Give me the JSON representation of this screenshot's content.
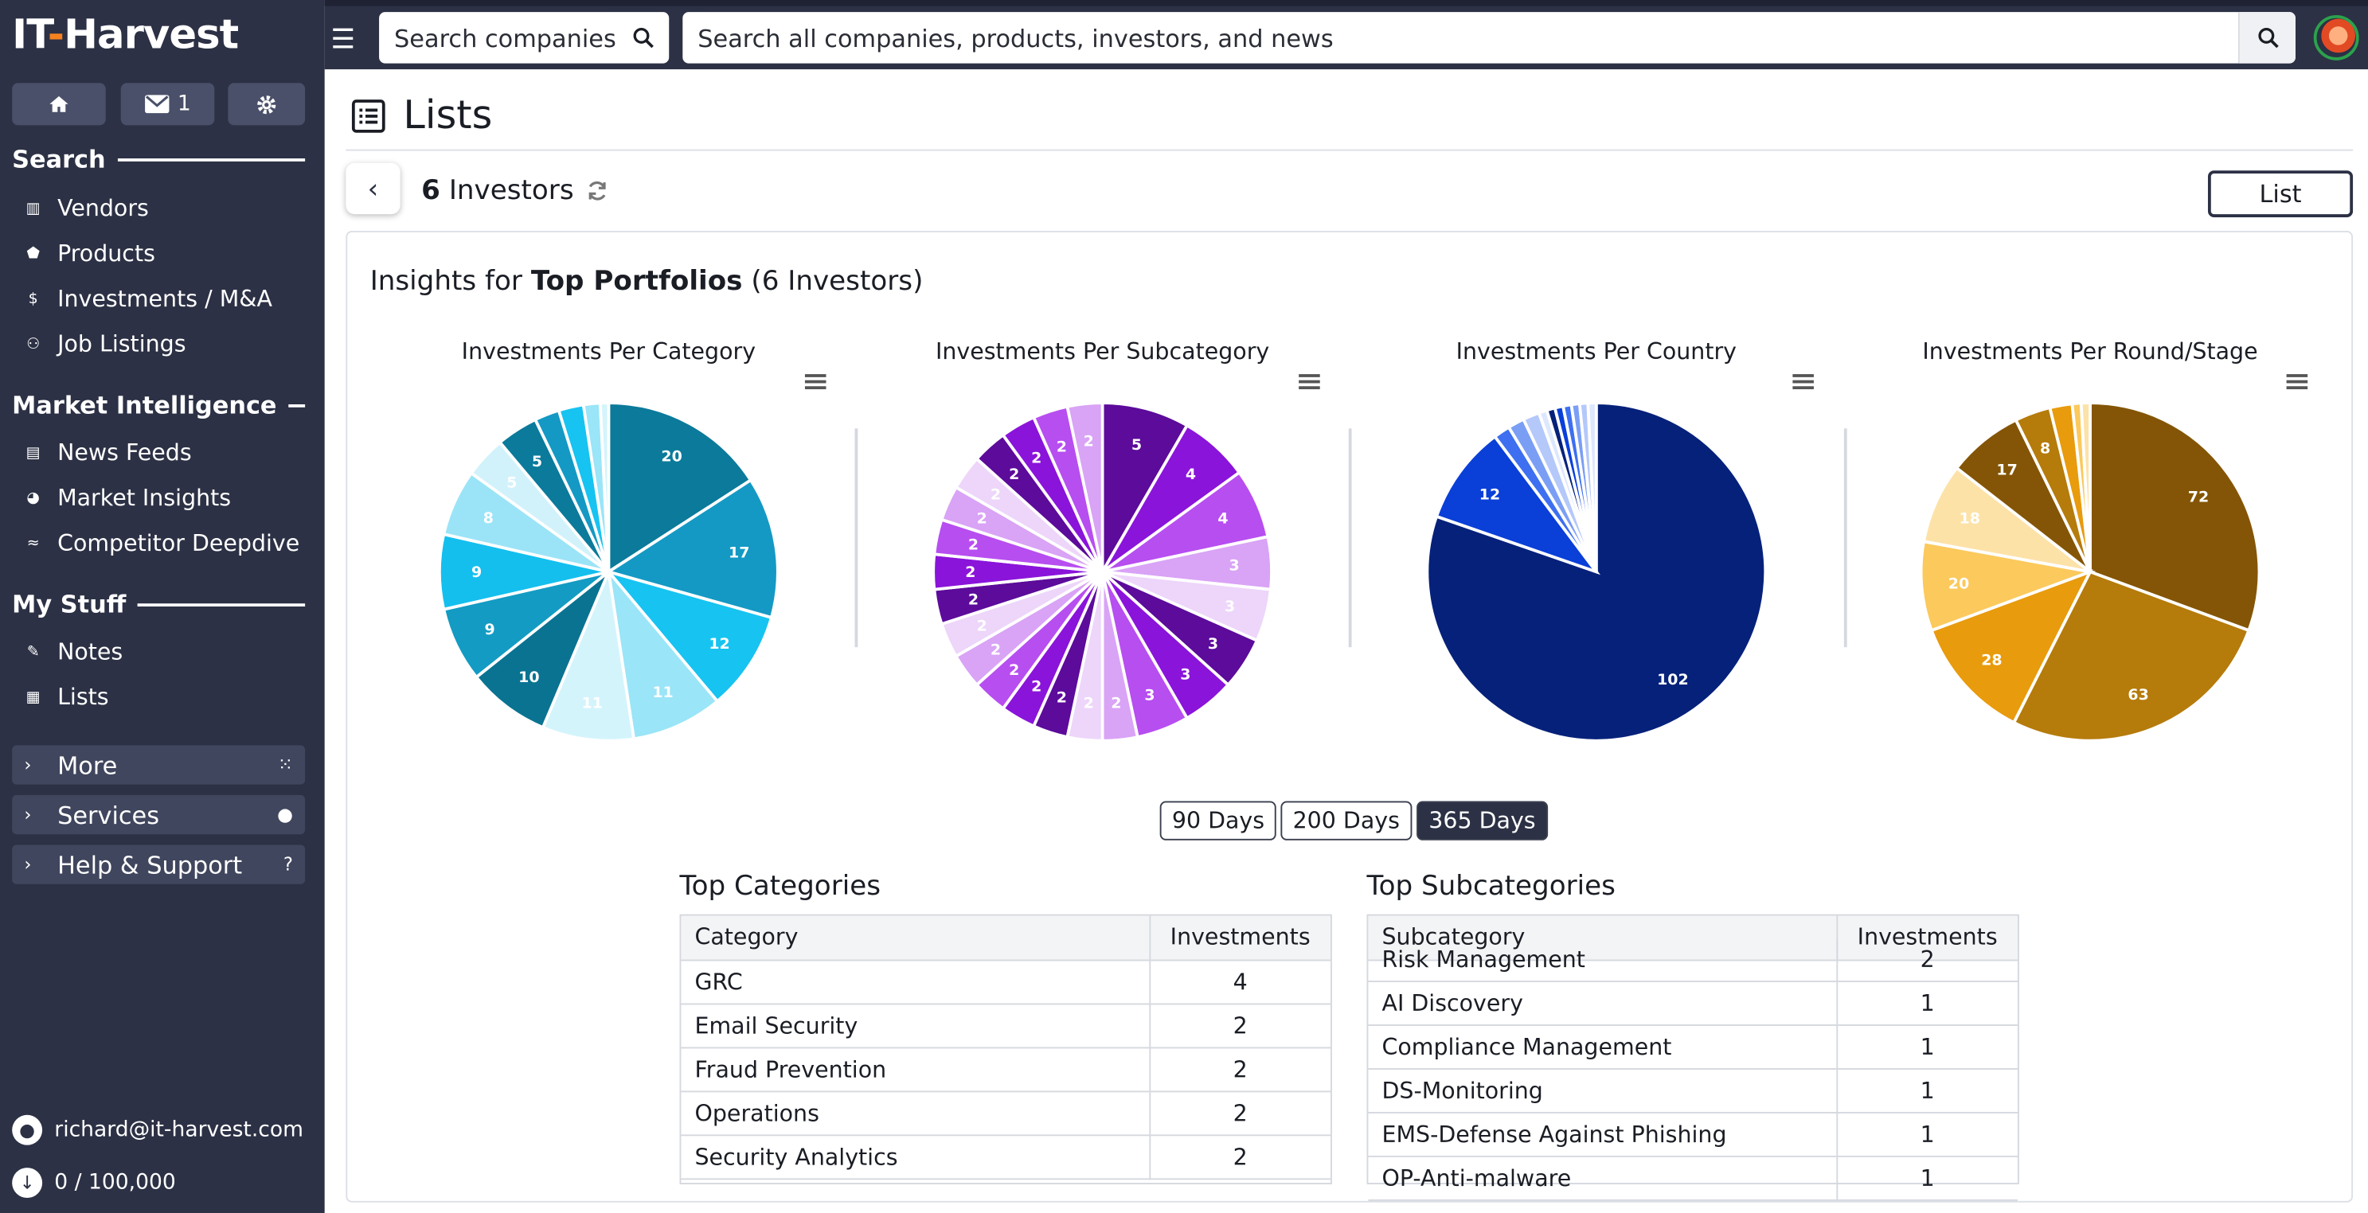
{
  "brand": {
    "name_pre": "IT",
    "name_dash": "-",
    "name_post": "Harvest"
  },
  "quick": {
    "mail_count": "1"
  },
  "sidebar": {
    "search_title": "Search",
    "search_items": [
      "Vendors",
      "Products",
      "Investments / M&A",
      "Job Listings"
    ],
    "mi_title": "Market Intelligence",
    "mi_items": [
      "News Feeds",
      "Market Insights",
      "Competitor Deepdive"
    ],
    "mystuff_title": "My Stuff",
    "mystuff_items": [
      "Notes",
      "Lists"
    ],
    "collapsibles": [
      "More",
      "Services",
      "Help & Support"
    ],
    "user_email": "richard@it-harvest.com",
    "quota": "0 / 100,000"
  },
  "topbar": {
    "search_companies_placeholder": "Search companies",
    "search_all_placeholder": "Search all companies, products, investors, and news"
  },
  "main": {
    "title": "Lists",
    "count_num": "6",
    "count_label": "Investors",
    "list_button": "List",
    "insights_prefix": "Insights for",
    "insights_bold": "Top Portfolios",
    "insights_suffix": "(6 Investors)",
    "ranges": [
      "90 Days",
      "200 Days",
      "365 Days"
    ],
    "active_range": "365 Days"
  },
  "chart_data": [
    {
      "type": "pie",
      "title": "Investments Per Category",
      "values": [
        20,
        17,
        12,
        11,
        11,
        10,
        9,
        9,
        8,
        5,
        5,
        3,
        3,
        2,
        1
      ],
      "colors": [
        "#0b7a9b",
        "#1499c4",
        "#17c3f0",
        "#9ae5f7",
        "#d4f4fc",
        "#0a7392",
        "#139bc3",
        "#14bfee",
        "#9be4f7",
        "#d2f2fb",
        "#0b7a9b",
        "#1499c4",
        "#17c3f0",
        "#9ae5f7",
        "#d4f4fc"
      ]
    },
    {
      "type": "pie",
      "title": "Investments Per Subcategory",
      "values": [
        5,
        4,
        4,
        3,
        3,
        3,
        3,
        3,
        2,
        2,
        2,
        2,
        2,
        2,
        2,
        2,
        2,
        2,
        2,
        2,
        2,
        2,
        2,
        2
      ],
      "colors": [
        "#5c0b9a",
        "#8a14d9",
        "#b74ef0",
        "#d9a3f6",
        "#edd6fa",
        "#5c0b9a",
        "#8a14d9",
        "#b74ef0",
        "#d9a3f6",
        "#edd6fa",
        "#5c0b9a",
        "#8a14d9",
        "#b74ef0",
        "#d9a3f6",
        "#edd6fa",
        "#5c0b9a",
        "#8a14d9",
        "#b74ef0",
        "#d9a3f6",
        "#edd6fa",
        "#5c0b9a",
        "#8a14d9",
        "#b74ef0",
        "#d9a3f6"
      ]
    },
    {
      "type": "pie",
      "title": "Investments Per Country",
      "values": [
        102,
        12,
        2,
        2,
        2,
        1,
        1,
        1,
        1,
        1,
        1,
        1
      ],
      "colors": [
        "#06217a",
        "#0a3fd8",
        "#3d6ff0",
        "#7b9ef5",
        "#b4c8fa",
        "#dde7fd",
        "#06217a",
        "#0a3fd8",
        "#3d6ff0",
        "#7b9ef5",
        "#b4c8fa",
        "#dde7fd"
      ]
    },
    {
      "type": "pie",
      "title": "Investments Per Round/Stage",
      "values": [
        72,
        63,
        28,
        20,
        18,
        17,
        8,
        5,
        2,
        2
      ],
      "colors": [
        "#845506",
        "#b57b0b",
        "#e89b0c",
        "#fbc95c",
        "#fde2a8",
        "#845506",
        "#b57b0b",
        "#e89b0c",
        "#fbc95c",
        "#fde2a8"
      ]
    }
  ],
  "tables": {
    "categories": {
      "title": "Top Categories",
      "headers": [
        "Category",
        "Investments"
      ],
      "rows": [
        [
          "GRC",
          "4"
        ],
        [
          "Email Security",
          "2"
        ],
        [
          "Fraud Prevention",
          "2"
        ],
        [
          "Operations",
          "2"
        ],
        [
          "Security Analytics",
          "2"
        ]
      ]
    },
    "subcategories": {
      "title": "Top Subcategories",
      "headers": [
        "Subcategory",
        "Investments"
      ],
      "rows": [
        [
          "Risk Management",
          "2"
        ],
        [
          "AI Discovery",
          "1"
        ],
        [
          "Compliance Management",
          "1"
        ],
        [
          "DS-Monitoring",
          "1"
        ],
        [
          "EMS-Defense Against Phishing",
          "1"
        ],
        [
          "OP-Anti-malware",
          "1"
        ]
      ]
    }
  }
}
